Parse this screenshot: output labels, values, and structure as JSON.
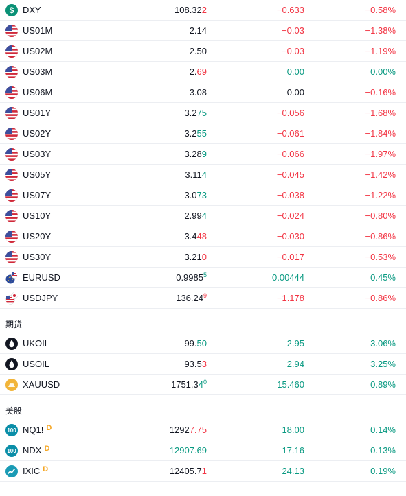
{
  "rows_top": [
    {
      "icon": "dollar-icon",
      "symbol": "DXY",
      "last_a": "108.32",
      "last_b": "2",
      "last_b_dir": "dn",
      "last_sup": "",
      "change": "−0.633",
      "change_dir": "dn",
      "pct": "−0.58%",
      "pct_dir": "dn"
    },
    {
      "icon": "us-flag-icon",
      "symbol": "US01M",
      "last_a": "2.14",
      "last_b": "",
      "last_b_dir": "neu",
      "last_sup": "",
      "change": "−0.03",
      "change_dir": "dn",
      "pct": "−1.38%",
      "pct_dir": "dn"
    },
    {
      "icon": "us-flag-icon",
      "symbol": "US02M",
      "last_a": "2.50",
      "last_b": "",
      "last_b_dir": "neu",
      "last_sup": "",
      "change": "−0.03",
      "change_dir": "dn",
      "pct": "−1.19%",
      "pct_dir": "dn"
    },
    {
      "icon": "us-flag-icon",
      "symbol": "US03M",
      "last_a": "2.",
      "last_b": "69",
      "last_b_dir": "dn",
      "last_sup": "",
      "change": "0.00",
      "change_dir": "up",
      "pct": "0.00%",
      "pct_dir": "up"
    },
    {
      "icon": "us-flag-icon",
      "symbol": "US06M",
      "last_a": "3.08",
      "last_b": "",
      "last_b_dir": "neu",
      "last_sup": "",
      "change": "0.00",
      "change_dir": "neu",
      "pct": "−0.16%",
      "pct_dir": "dn"
    },
    {
      "icon": "us-flag-icon",
      "symbol": "US01Y",
      "last_a": "3.2",
      "last_b": "75",
      "last_b_dir": "up",
      "last_sup": "",
      "change": "−0.056",
      "change_dir": "dn",
      "pct": "−1.68%",
      "pct_dir": "dn"
    },
    {
      "icon": "us-flag-icon",
      "symbol": "US02Y",
      "last_a": "3.2",
      "last_b": "55",
      "last_b_dir": "up",
      "last_sup": "",
      "change": "−0.061",
      "change_dir": "dn",
      "pct": "−1.84%",
      "pct_dir": "dn"
    },
    {
      "icon": "us-flag-icon",
      "symbol": "US03Y",
      "last_a": "3.28",
      "last_b": "9",
      "last_b_dir": "up",
      "last_sup": "",
      "change": "−0.066",
      "change_dir": "dn",
      "pct": "−1.97%",
      "pct_dir": "dn"
    },
    {
      "icon": "us-flag-icon",
      "symbol": "US05Y",
      "last_a": "3.11",
      "last_b": "4",
      "last_b_dir": "up",
      "last_sup": "",
      "change": "−0.045",
      "change_dir": "dn",
      "pct": "−1.42%",
      "pct_dir": "dn"
    },
    {
      "icon": "us-flag-icon",
      "symbol": "US07Y",
      "last_a": "3.0",
      "last_b": "73",
      "last_b_dir": "up",
      "last_sup": "",
      "change": "−0.038",
      "change_dir": "dn",
      "pct": "−1.22%",
      "pct_dir": "dn"
    },
    {
      "icon": "us-flag-icon",
      "symbol": "US10Y",
      "last_a": "2.99",
      "last_b": "4",
      "last_b_dir": "up",
      "last_sup": "",
      "change": "−0.024",
      "change_dir": "dn",
      "pct": "−0.80%",
      "pct_dir": "dn"
    },
    {
      "icon": "us-flag-icon",
      "symbol": "US20Y",
      "last_a": "3.4",
      "last_b": "48",
      "last_b_dir": "dn",
      "last_sup": "",
      "change": "−0.030",
      "change_dir": "dn",
      "pct": "−0.86%",
      "pct_dir": "dn"
    },
    {
      "icon": "us-flag-icon",
      "symbol": "US30Y",
      "last_a": "3.21",
      "last_b": "0",
      "last_b_dir": "dn",
      "last_sup": "",
      "change": "−0.017",
      "change_dir": "dn",
      "pct": "−0.53%",
      "pct_dir": "dn"
    },
    {
      "icon": "eur-usd-icon",
      "symbol": "EURUSD",
      "last_a": "0.9985",
      "last_b": "",
      "last_b_dir": "neu",
      "last_sup": "5",
      "last_sup_dir": "up",
      "change": "0.00444",
      "change_dir": "up",
      "pct": "0.45%",
      "pct_dir": "up"
    },
    {
      "icon": "usd-jpy-icon",
      "symbol": "USDJPY",
      "last_a": "136.24",
      "last_b": "",
      "last_b_dir": "neu",
      "last_sup": "9",
      "last_sup_dir": "dn",
      "change": "−1.178",
      "change_dir": "dn",
      "pct": "−0.86%",
      "pct_dir": "dn"
    }
  ],
  "section_futures": "期货",
  "rows_futures": [
    {
      "icon": "oil-drop-icon",
      "symbol": "UKOIL",
      "last_a": "99.",
      "last_b": "50",
      "last_b_dir": "up",
      "last_sup": "",
      "change": "2.95",
      "change_dir": "up",
      "pct": "3.06%",
      "pct_dir": "up"
    },
    {
      "icon": "oil-drop-icon",
      "symbol": "USOIL",
      "last_a": "93.5",
      "last_b": "3",
      "last_b_dir": "dn",
      "last_sup": "",
      "change": "2.94",
      "change_dir": "up",
      "pct": "3.25%",
      "pct_dir": "up"
    },
    {
      "icon": "gold-bar-icon",
      "symbol": "XAUUSD",
      "last_a": "1751.3",
      "last_b": "4",
      "last_b_dir": "up",
      "last_sup": "0",
      "last_sup_dir": "up",
      "change": "15.460",
      "change_dir": "up",
      "pct": "0.89%",
      "pct_dir": "up"
    }
  ],
  "section_us_stocks": "美股",
  "rows_stocks": [
    {
      "icon": "hundred-icon",
      "icon_text": "100",
      "symbol": "NQ1!",
      "badge": "D",
      "last_a": "1292",
      "last_b": "7.75",
      "last_b_dir": "dn",
      "last_sup": "",
      "change": "18.00",
      "change_dir": "up",
      "pct": "0.14%",
      "pct_dir": "up"
    },
    {
      "icon": "hundred-icon",
      "icon_text": "100",
      "symbol": "NDX",
      "badge": "D",
      "last_a": "",
      "last_b": "12907.69",
      "last_b_dir": "up",
      "last_sup": "",
      "change": "17.16",
      "change_dir": "up",
      "pct": "0.13%",
      "pct_dir": "up"
    },
    {
      "icon": "trend-line-icon",
      "icon_text": "",
      "symbol": "IXIC",
      "badge": "D",
      "last_a": "12405.7",
      "last_b": "1",
      "last_b_dir": "dn",
      "last_sup": "",
      "change": "24.13",
      "change_dir": "up",
      "pct": "0.19%",
      "pct_dir": "up"
    }
  ],
  "dxy_icon_text": "$"
}
